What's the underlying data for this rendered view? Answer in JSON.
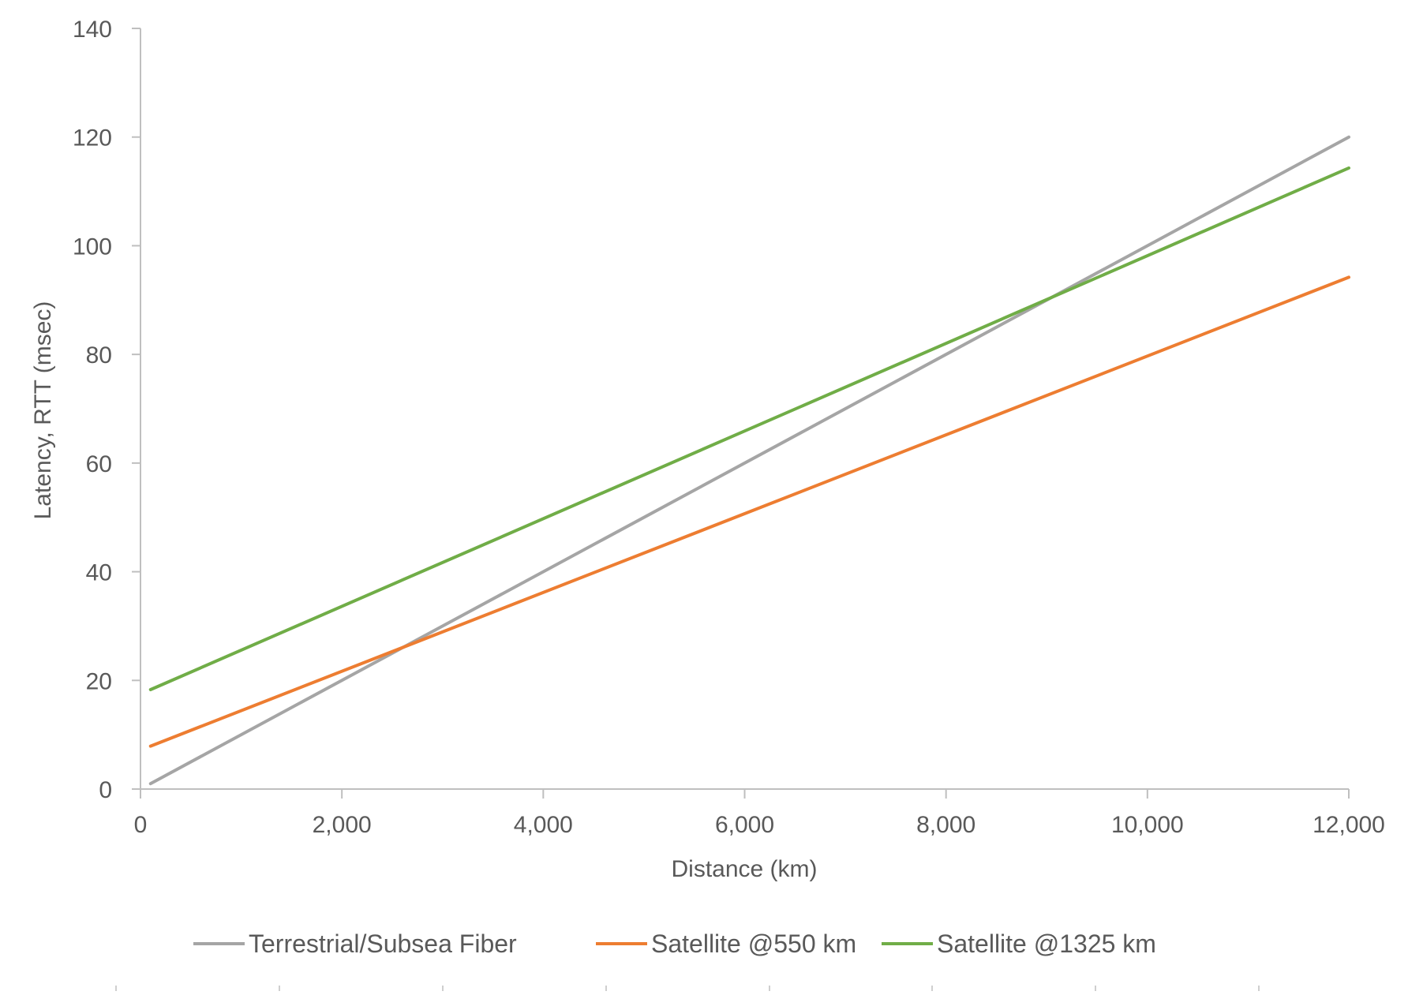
{
  "chart_data": {
    "type": "line",
    "title": "",
    "xlabel": "Distance (km)",
    "ylabel": "Latency, RTT (msec)",
    "xlim": [
      0,
      12000
    ],
    "ylim": [
      0,
      140
    ],
    "x_ticks": [
      0,
      2000,
      4000,
      6000,
      8000,
      10000,
      12000
    ],
    "x_tick_labels": [
      "0",
      "2,000",
      "4,000",
      "6,000",
      "8,000",
      "10,000",
      "12,000"
    ],
    "y_ticks": [
      0,
      20,
      40,
      60,
      80,
      100,
      120,
      140
    ],
    "y_tick_labels": [
      "0",
      "20",
      "40",
      "60",
      "80",
      "100",
      "120",
      "140"
    ],
    "grid": false,
    "legend_position": "bottom",
    "x": [
      100,
      12000
    ],
    "series": [
      {
        "name": "Terrestrial/Subsea Fiber",
        "color": "#A5A5A5",
        "values": [
          1.0,
          120.0
        ]
      },
      {
        "name": "Satellite @550 km",
        "color": "#ED7D31",
        "values": [
          7.9,
          94.2
        ]
      },
      {
        "name": "Satellite @1325 km",
        "color": "#70AD47",
        "values": [
          18.3,
          114.3
        ]
      }
    ]
  },
  "colors": {
    "axis": "#BFBFBF",
    "text": "#595959"
  }
}
